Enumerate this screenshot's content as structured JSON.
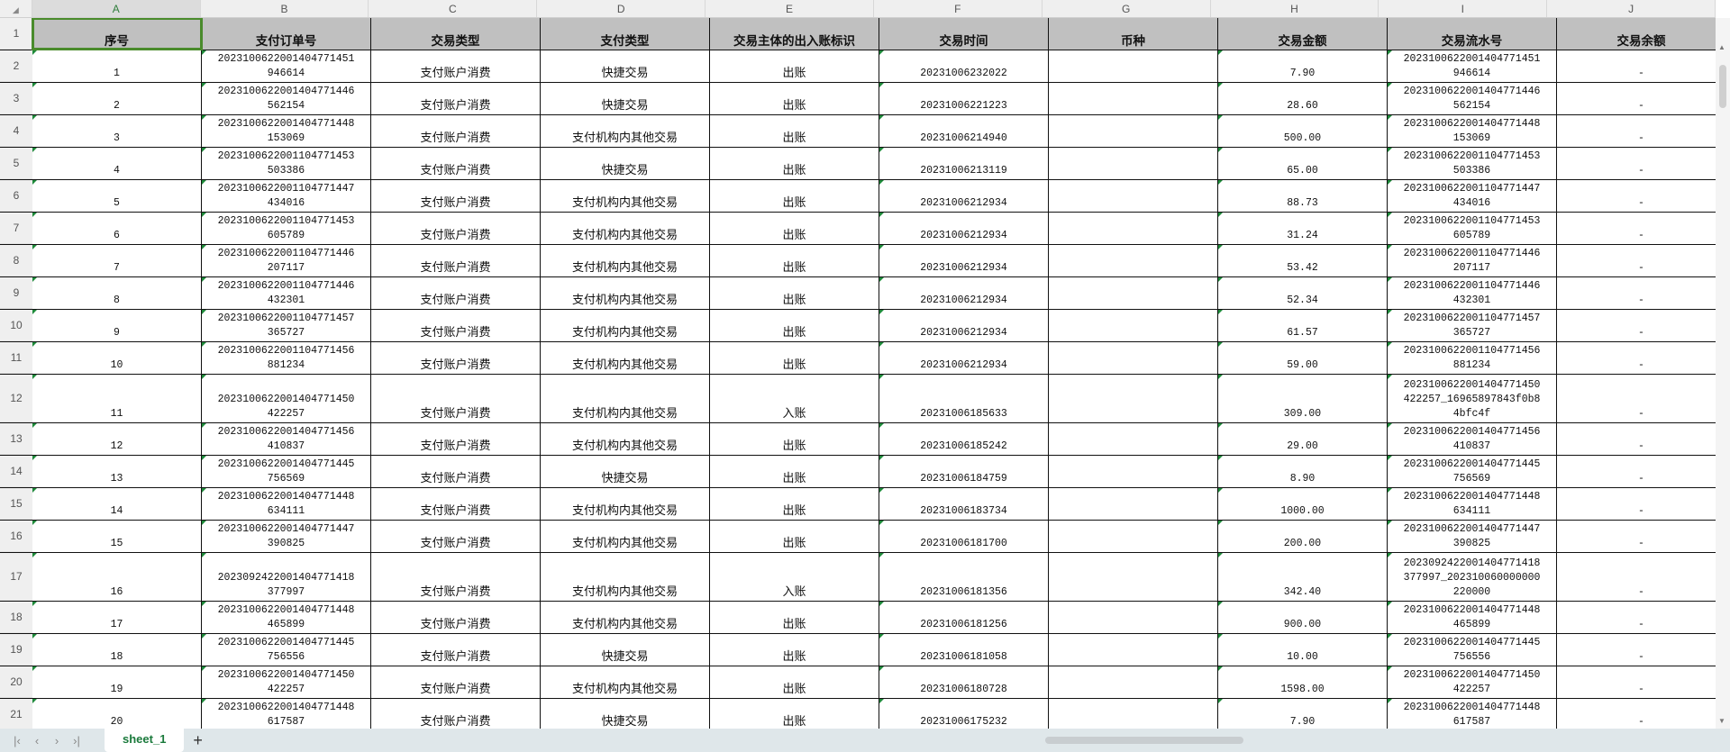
{
  "columns": [
    "A",
    "B",
    "C",
    "D",
    "E",
    "F",
    "G",
    "H",
    "I",
    "J"
  ],
  "headers": [
    "序号",
    "支付订单号",
    "交易类型",
    "支付类型",
    "交易主体的出入账标识",
    "交易时间",
    "币种",
    "交易金额",
    "交易流水号",
    "交易余额"
  ],
  "rows": [
    [
      "1",
      "2023100622001404771451946614",
      "支付账户消费",
      "快捷交易",
      "出账",
      "20231006232022",
      "",
      "7.90",
      "2023100622001404771451946614",
      "-"
    ],
    [
      "2",
      "2023100622001404771446562154",
      "支付账户消费",
      "快捷交易",
      "出账",
      "20231006221223",
      "",
      "28.60",
      "2023100622001404771446562154",
      "-"
    ],
    [
      "3",
      "2023100622001404771448153069",
      "支付账户消费",
      "支付机构内其他交易",
      "出账",
      "20231006214940",
      "",
      "500.00",
      "2023100622001404771448153069",
      "-"
    ],
    [
      "4",
      "2023100622001104771453503386",
      "支付账户消费",
      "快捷交易",
      "出账",
      "20231006213119",
      "",
      "65.00",
      "2023100622001104771453503386",
      "-"
    ],
    [
      "5",
      "2023100622001104771447434016",
      "支付账户消费",
      "支付机构内其他交易",
      "出账",
      "20231006212934",
      "",
      "88.73",
      "2023100622001104771447434016",
      "-"
    ],
    [
      "6",
      "2023100622001104771453605789",
      "支付账户消费",
      "支付机构内其他交易",
      "出账",
      "20231006212934",
      "",
      "31.24",
      "2023100622001104771453605789",
      "-"
    ],
    [
      "7",
      "2023100622001104771446207117",
      "支付账户消费",
      "支付机构内其他交易",
      "出账",
      "20231006212934",
      "",
      "53.42",
      "2023100622001104771446207117",
      "-"
    ],
    [
      "8",
      "2023100622001104771446432301",
      "支付账户消费",
      "支付机构内其他交易",
      "出账",
      "20231006212934",
      "",
      "52.34",
      "2023100622001104771446432301",
      "-"
    ],
    [
      "9",
      "2023100622001104771457365727",
      "支付账户消费",
      "支付机构内其他交易",
      "出账",
      "20231006212934",
      "",
      "61.57",
      "2023100622001104771457365727",
      "-"
    ],
    [
      "10",
      "2023100622001104771456881234",
      "支付账户消费",
      "支付机构内其他交易",
      "出账",
      "20231006212934",
      "",
      "59.00",
      "2023100622001104771456881234",
      "-"
    ],
    [
      "11",
      "2023100622001404771450422257",
      "支付账户消费",
      "支付机构内其他交易",
      "入账",
      "20231006185633",
      "",
      "309.00",
      "2023100622001404771450422257_16965897843f0b84bfc4f",
      "-"
    ],
    [
      "12",
      "2023100622001404771456410837",
      "支付账户消费",
      "支付机构内其他交易",
      "出账",
      "20231006185242",
      "",
      "29.00",
      "2023100622001404771456410837",
      "-"
    ],
    [
      "13",
      "2023100622001404771445756569",
      "支付账户消费",
      "快捷交易",
      "出账",
      "20231006184759",
      "",
      "8.90",
      "2023100622001404771445756569",
      "-"
    ],
    [
      "14",
      "2023100622001404771448634111",
      "支付账户消费",
      "支付机构内其他交易",
      "出账",
      "20231006183734",
      "",
      "1000.00",
      "2023100622001404771448634111",
      "-"
    ],
    [
      "15",
      "2023100622001404771447390825",
      "支付账户消费",
      "支付机构内其他交易",
      "出账",
      "20231006181700",
      "",
      "200.00",
      "2023100622001404771447390825",
      "-"
    ],
    [
      "16",
      "2023092422001404771418377997",
      "支付账户消费",
      "支付机构内其他交易",
      "入账",
      "20231006181356",
      "",
      "342.40",
      "2023092422001404771418377997_202310060000000220000",
      "-"
    ],
    [
      "17",
      "2023100622001404771448465899",
      "支付账户消费",
      "支付机构内其他交易",
      "出账",
      "20231006181256",
      "",
      "900.00",
      "2023100622001404771448465899",
      "-"
    ],
    [
      "18",
      "2023100622001404771445756556",
      "支付账户消费",
      "快捷交易",
      "出账",
      "20231006181058",
      "",
      "10.00",
      "2023100622001404771445756556",
      "-"
    ],
    [
      "19",
      "2023100622001404771450422257",
      "支付账户消费",
      "支付机构内其他交易",
      "出账",
      "20231006180728",
      "",
      "1598.00",
      "2023100622001404771450422257",
      "-"
    ],
    [
      "20",
      "2023100622001404771448617587",
      "支付账户消费",
      "快捷交易",
      "出账",
      "20231006175232",
      "",
      "7.90",
      "2023100622001404771448617587",
      "-"
    ]
  ],
  "sheet_tabs": [
    {
      "label": "sheet_1",
      "active": true
    }
  ],
  "add_sheet_label": "+",
  "nav_icons": [
    "first-sheet-icon",
    "prev-sheet-icon",
    "next-sheet-icon",
    "last-sheet-icon"
  ],
  "selected_cell": "A1",
  "colors": {
    "selection": "#4a8b2c",
    "header_fill": "#c0c0c0",
    "tab_text": "#1b7a3c"
  }
}
